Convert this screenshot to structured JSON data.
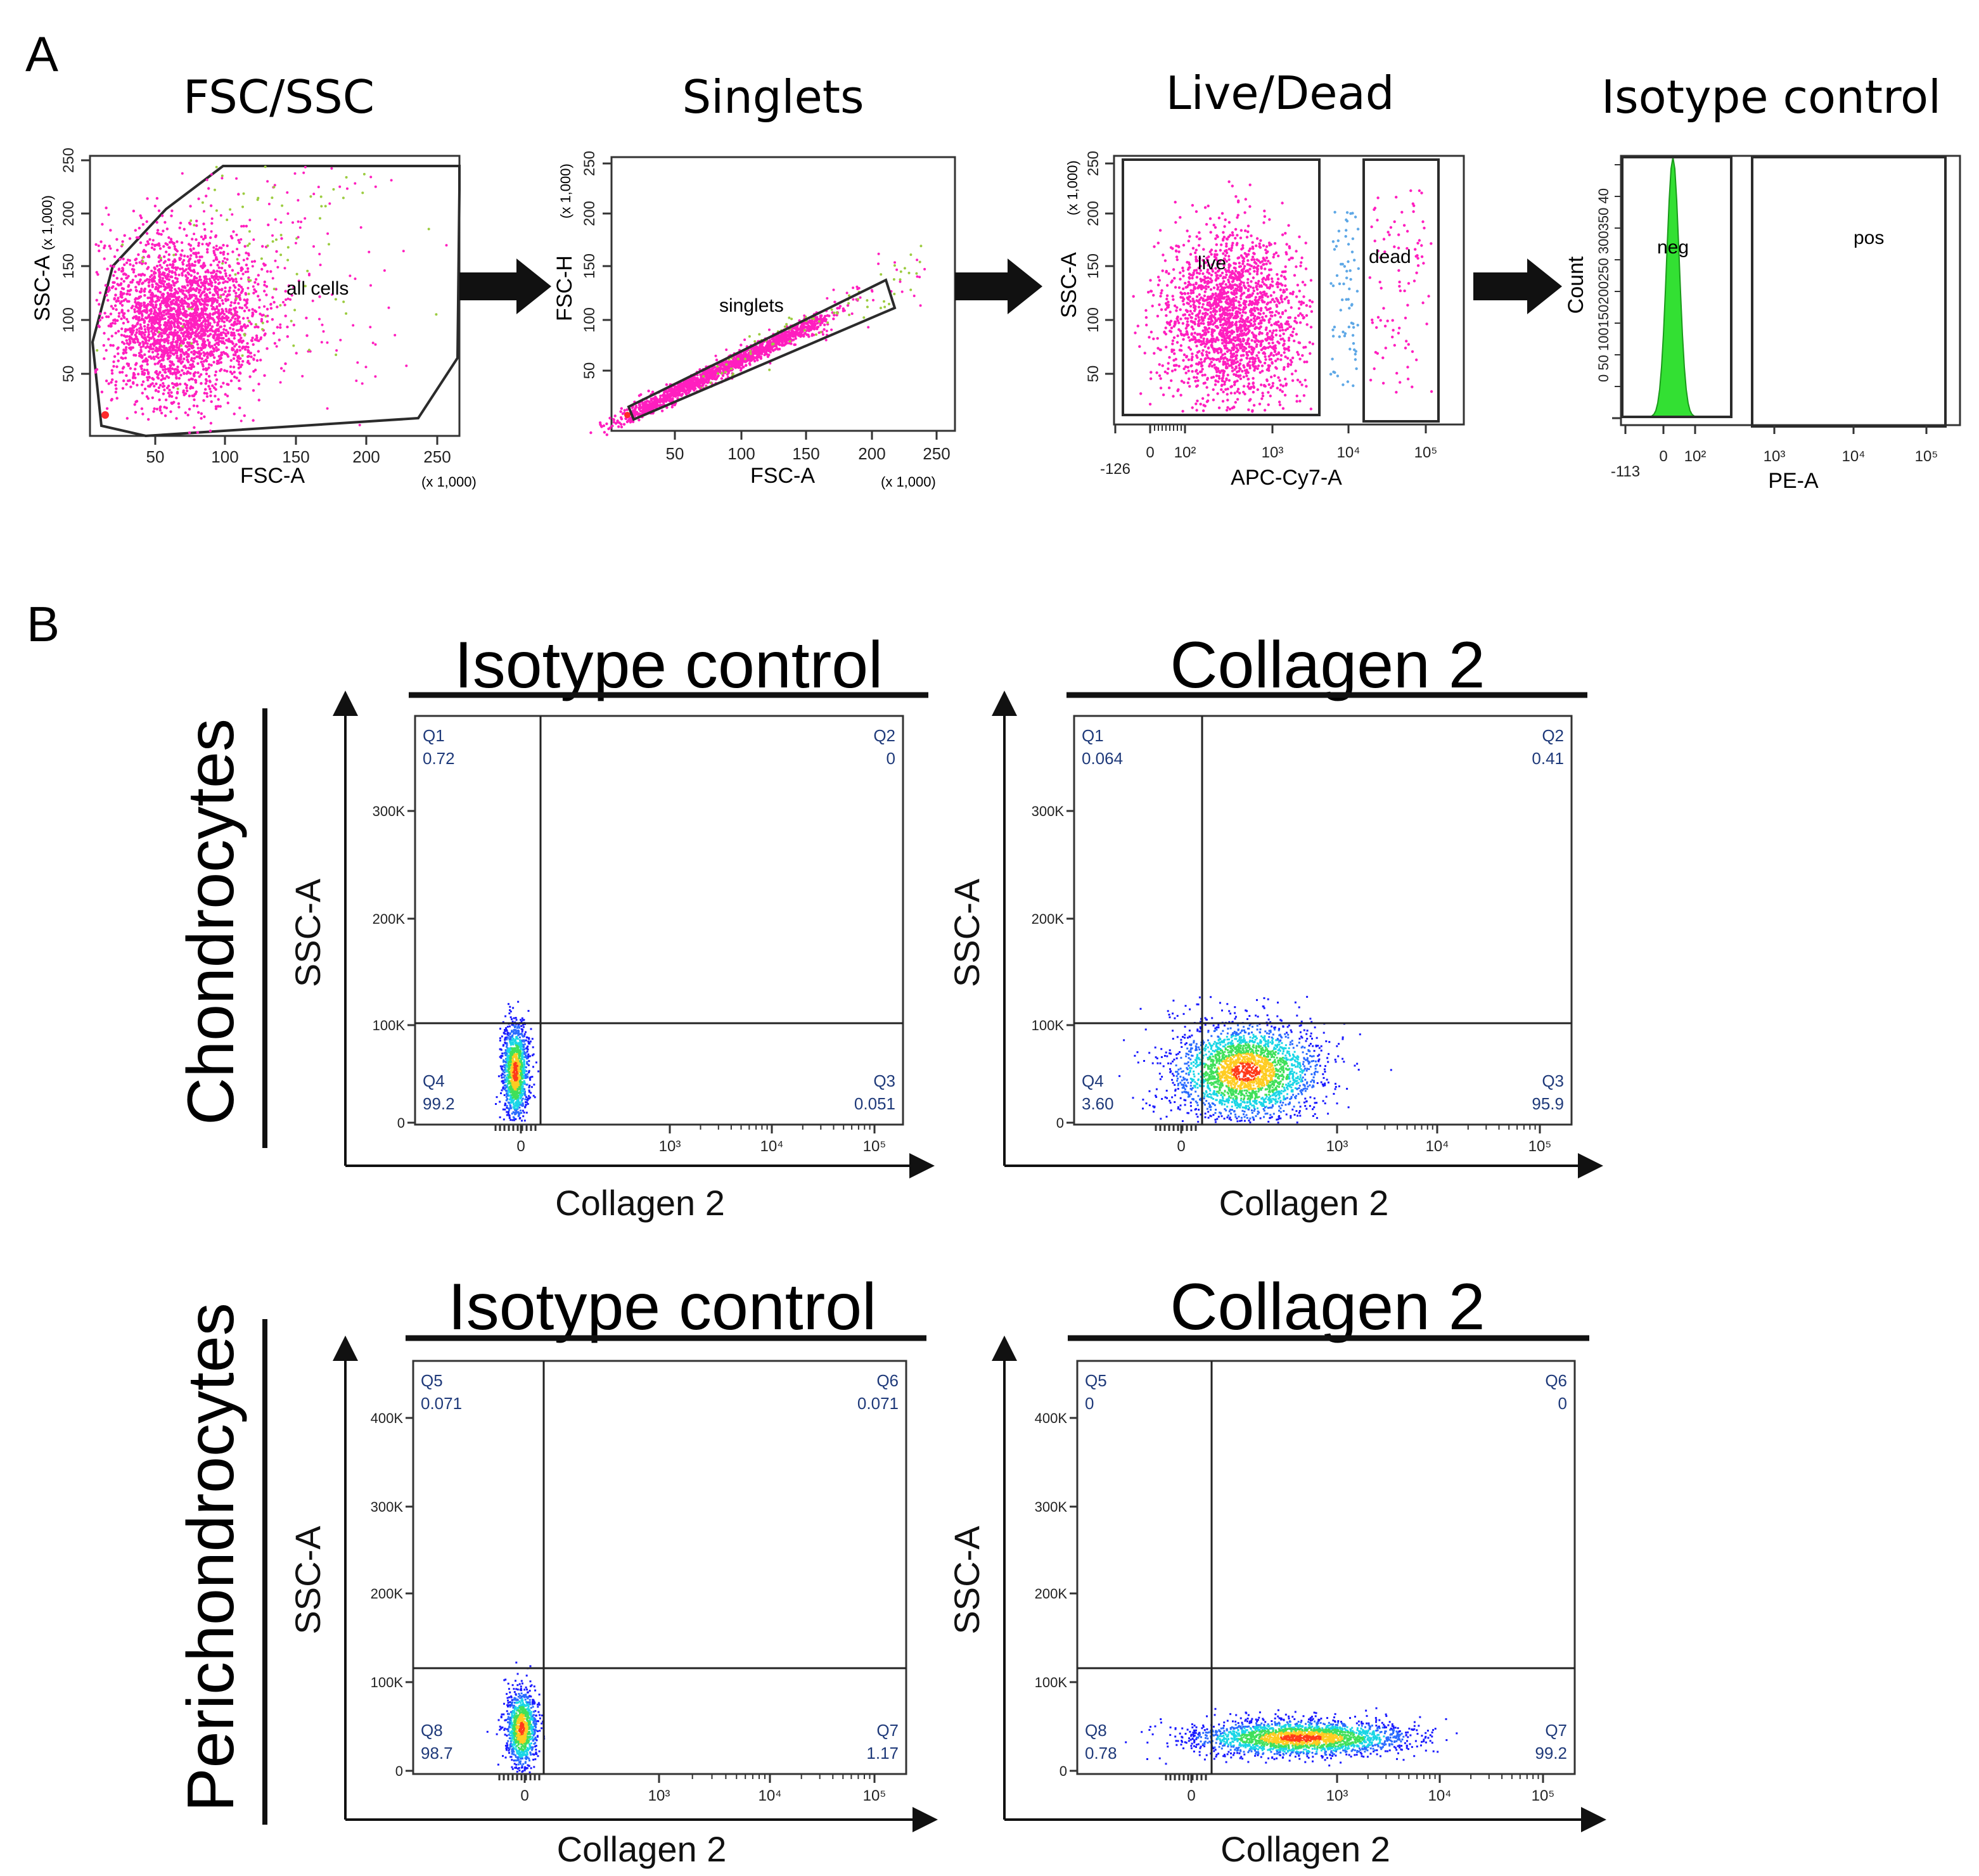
{
  "figure": {
    "panel_a_letter": "A",
    "panel_b_letter": "B",
    "colors": {
      "pink": "#ff1fbf",
      "green_pop": "#9ccc40",
      "blue_pop": "#5fa8e6",
      "red_pop": "#ff2a2a",
      "histogram_fill": "#33e033",
      "axis": "#333333",
      "gate": "#2b2b2b"
    }
  },
  "chart_data": [
    {
      "id": "fsc-ssc",
      "type": "scatter",
      "title": "FSC/SSC",
      "xlabel": "FSC-A",
      "ylabel": "SSC-A",
      "x_scale_note": "(x 1,000)",
      "y_scale_note": "(x 1,000)",
      "xlim": [
        0,
        262
      ],
      "ylim": [
        0,
        262
      ],
      "x_ticks": [
        "50",
        "100",
        "150",
        "200",
        "250"
      ],
      "y_ticks": [
        "50",
        "100",
        "150",
        "200",
        "250"
      ],
      "gate_label": "all cells",
      "population_center": [
        75,
        100
      ]
    },
    {
      "id": "singlets",
      "type": "scatter",
      "title": "Singlets",
      "xlabel": "FSC-A",
      "ylabel": "FSC-H",
      "x_scale_note": "(x 1,000)",
      "y_scale_note": "(x 1,000)",
      "xlim": [
        0,
        262
      ],
      "ylim": [
        0,
        262
      ],
      "x_ticks": [
        "50",
        "100",
        "150",
        "200",
        "250"
      ],
      "y_ticks": [
        "50",
        "100",
        "150",
        "200",
        "250"
      ],
      "gate_label": "singlets"
    },
    {
      "id": "live-dead",
      "type": "scatter",
      "title": "Live/Dead",
      "xlabel": "APC-Cy7-A",
      "ylabel": "SSC-A",
      "y_scale_note": "(x 1,000)",
      "x_ticks": [
        "-126",
        "0",
        "10²",
        "10³",
        "10⁴",
        "10⁵"
      ],
      "y_ticks": [
        "50",
        "100",
        "150",
        "200",
        "250"
      ],
      "gates": [
        "live",
        "dead"
      ]
    },
    {
      "id": "isotype-hist",
      "type": "histogram",
      "title": "Isotype control",
      "xlabel": "PE-A",
      "ylabel": "Count",
      "x_ticks": [
        "-113",
        "0",
        "10²",
        "10³",
        "10⁴",
        "10⁵"
      ],
      "y_ticks": [
        "50",
        "100",
        "150",
        "200",
        "250",
        "300",
        "350",
        "400"
      ],
      "y_tick_labels_overlap": "0 50 100150200250 300350 40",
      "gates": [
        "neg",
        "pos"
      ]
    },
    {
      "id": "chondro-isotype",
      "type": "scatter",
      "row_label": "Chondrocytes",
      "title": "Isotype control",
      "xlabel": "Collagen 2",
      "ylabel": "SSC-A",
      "y_ticks": [
        "0",
        "100K",
        "200K",
        "300K"
      ],
      "x_ticks": [
        "0",
        "10³",
        "10⁴",
        "10⁵"
      ],
      "quadrants": [
        {
          "name": "Q1",
          "value": "0.72"
        },
        {
          "name": "Q2",
          "value": "0"
        },
        {
          "name": "Q3",
          "value": "0.051"
        },
        {
          "name": "Q4",
          "value": "99.2"
        }
      ]
    },
    {
      "id": "chondro-col2",
      "type": "scatter",
      "row_label": "Chondrocytes",
      "title": "Collagen 2",
      "xlabel": "Collagen 2",
      "ylabel": "SSC-A",
      "y_ticks": [
        "0",
        "100K",
        "200K",
        "300K"
      ],
      "x_ticks": [
        "0",
        "10³",
        "10⁴",
        "10⁵"
      ],
      "quadrants": [
        {
          "name": "Q1",
          "value": "0.064"
        },
        {
          "name": "Q2",
          "value": "0.41"
        },
        {
          "name": "Q3",
          "value": "95.9"
        },
        {
          "name": "Q4",
          "value": "3.60"
        }
      ]
    },
    {
      "id": "peri-isotype",
      "type": "scatter",
      "row_label": "Perichondrocytes",
      "title": "Isotype control",
      "xlabel": "Collagen 2",
      "ylabel": "SSC-A",
      "y_ticks": [
        "0",
        "100K",
        "200K",
        "300K",
        "400K"
      ],
      "x_ticks": [
        "0",
        "10³",
        "10⁴",
        "10⁵"
      ],
      "quadrants": [
        {
          "name": "Q5",
          "value": "0.071"
        },
        {
          "name": "Q6",
          "value": "0.071"
        },
        {
          "name": "Q7",
          "value": "1.17"
        },
        {
          "name": "Q8",
          "value": "98.7"
        }
      ]
    },
    {
      "id": "peri-col2",
      "type": "scatter",
      "row_label": "Perichondrocytes",
      "title": "Collagen 2",
      "xlabel": "Collagen 2",
      "ylabel": "SSC-A",
      "y_ticks": [
        "0",
        "100K",
        "200K",
        "300K",
        "400K"
      ],
      "x_ticks": [
        "0",
        "10³",
        "10⁴",
        "10⁵"
      ],
      "quadrants": [
        {
          "name": "Q5",
          "value": "0"
        },
        {
          "name": "Q6",
          "value": "0"
        },
        {
          "name": "Q7",
          "value": "99.2"
        },
        {
          "name": "Q8",
          "value": "0.78"
        }
      ]
    }
  ],
  "row_labels": {
    "chondro": "Chondrocytes",
    "peri": "Perichondrocytes"
  }
}
